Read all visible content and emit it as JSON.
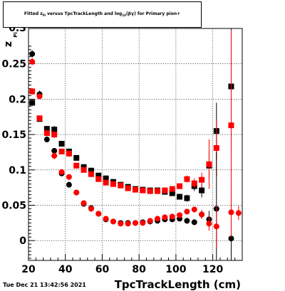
{
  "chart_data": {
    "type": "scatter",
    "title": "Fitted  z_Pi  versus TpcTrackLength and log_10(βγ) for Primary pion+",
    "title_parts": [
      "Fitted  z",
      "Pi",
      "  versus TpcTrackLength and log",
      "10",
      "(β",
      "γ) for Primary pion+"
    ],
    "xlabel": "TpcTrackLength (cm)",
    "ylabel_main": "z",
    "ylabel_sub": "Pi",
    "xlim": [
      20,
      136
    ],
    "ylim": [
      -0.028,
      0.3
    ],
    "xticks": [
      20,
      40,
      60,
      80,
      100,
      120
    ],
    "yticks": [
      0,
      0.05,
      0.1,
      0.15,
      0.2,
      0.25
    ],
    "ytick_labels": [
      "0",
      "0.05",
      "0.1",
      "0.15",
      "0.2",
      "0.25"
    ],
    "top_tick_label": "0.3",
    "grid": true,
    "series": [
      {
        "color": "#000000",
        "marker": "square",
        "x": [
          22,
          26,
          30,
          34,
          38,
          42,
          46,
          50,
          54,
          58,
          62,
          66,
          70,
          74,
          78,
          82,
          86,
          90,
          94,
          98,
          102,
          106,
          110,
          114,
          118,
          122,
          130
        ],
        "y": [
          0.195,
          0.172,
          0.158,
          0.157,
          0.137,
          0.126,
          0.117,
          0.104,
          0.099,
          0.092,
          0.088,
          0.083,
          0.079,
          0.076,
          0.073,
          0.072,
          0.071,
          0.071,
          0.069,
          0.067,
          0.062,
          0.06,
          0.077,
          0.071,
          0.106,
          0.155,
          0.218
        ],
        "err": [
          0.005,
          0.004,
          0.004,
          0.005,
          0.004,
          0.004,
          0.003,
          0.003,
          0.003,
          0.003,
          0.003,
          0.003,
          0.003,
          0.003,
          0.003,
          0.003,
          0.003,
          0.003,
          0.003,
          0.004,
          0.004,
          0.005,
          0.007,
          0.01,
          0.02,
          0.04,
          0.09
        ]
      },
      {
        "color": "#ff0000",
        "marker": "square",
        "x": [
          22,
          26,
          30,
          34,
          38,
          42,
          46,
          50,
          54,
          58,
          62,
          66,
          70,
          74,
          78,
          82,
          86,
          90,
          94,
          98,
          102,
          106,
          110,
          114,
          118,
          122,
          130
        ],
        "y": [
          0.211,
          0.173,
          0.152,
          0.15,
          0.126,
          0.123,
          0.106,
          0.1,
          0.094,
          0.087,
          0.082,
          0.08,
          0.078,
          0.074,
          0.072,
          0.071,
          0.07,
          0.07,
          0.071,
          0.073,
          0.077,
          0.087,
          0.081,
          0.086,
          0.108,
          0.131,
          0.163
        ],
        "err": [
          0.005,
          0.004,
          0.004,
          0.005,
          0.004,
          0.004,
          0.003,
          0.003,
          0.003,
          0.003,
          0.003,
          0.003,
          0.003,
          0.003,
          0.003,
          0.003,
          0.003,
          0.003,
          0.003,
          0.004,
          0.004,
          0.005,
          0.007,
          0.01,
          0.035,
          0.04,
          0.135
        ]
      },
      {
        "color": "#000000",
        "marker": "circle",
        "x": [
          22,
          26,
          30,
          34,
          38,
          42,
          46,
          50,
          54,
          58,
          62,
          66,
          70,
          74,
          78,
          82,
          86,
          90,
          94,
          98,
          102,
          106,
          110,
          114,
          118,
          122,
          130
        ],
        "y": [
          0.264,
          0.207,
          0.143,
          0.127,
          0.095,
          0.079,
          0.068,
          0.052,
          0.046,
          0.038,
          0.03,
          0.027,
          0.025,
          0.025,
          0.025,
          0.026,
          0.027,
          0.028,
          0.03,
          0.03,
          0.031,
          0.028,
          0.026,
          0.037,
          0.03,
          0.045,
          0.003
        ],
        "err": [
          0.005,
          0.005,
          0.004,
          0.004,
          0.004,
          0.004,
          0.003,
          0.003,
          0.003,
          0.003,
          0.003,
          0.003,
          0.002,
          0.002,
          0.002,
          0.002,
          0.002,
          0.002,
          0.002,
          0.003,
          0.003,
          0.004,
          0.004,
          0.006,
          0.012,
          0.08,
          0.04
        ]
      },
      {
        "color": "#ff0000",
        "marker": "circle",
        "x": [
          22,
          26,
          30,
          34,
          38,
          42,
          46,
          50,
          54,
          58,
          62,
          66,
          70,
          74,
          78,
          82,
          86,
          90,
          94,
          98,
          102,
          106,
          110,
          114,
          118,
          122,
          130,
          134
        ],
        "y": [
          0.253,
          0.204,
          0.152,
          0.12,
          0.097,
          0.09,
          0.068,
          0.053,
          0.045,
          0.038,
          0.031,
          0.027,
          0.024,
          0.024,
          0.025,
          0.025,
          0.028,
          0.031,
          0.033,
          0.034,
          0.036,
          0.041,
          0.044,
          0.037,
          0.024,
          0.02,
          0.04,
          0.039
        ],
        "err": [
          0.005,
          0.004,
          0.004,
          0.005,
          0.004,
          0.004,
          0.003,
          0.003,
          0.003,
          0.003,
          0.003,
          0.002,
          0.002,
          0.002,
          0.002,
          0.002,
          0.002,
          0.002,
          0.002,
          0.003,
          0.003,
          0.004,
          0.004,
          0.006,
          0.01,
          0.03,
          0.035,
          0.01
        ]
      }
    ]
  },
  "timestamp": "Tue Dec 21 13:42:56 2021"
}
